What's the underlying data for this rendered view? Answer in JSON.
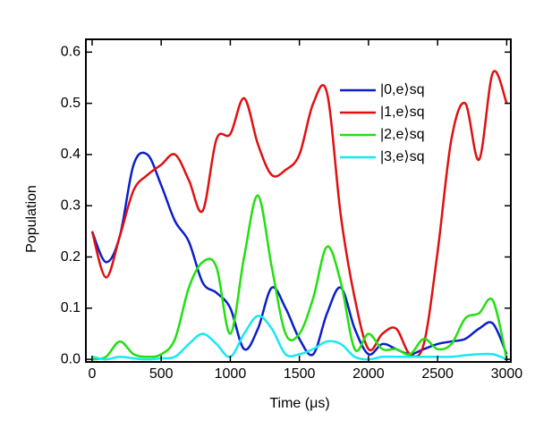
{
  "chart_data": {
    "type": "line",
    "xlabel": "Time (μs)",
    "ylabel": "Population",
    "x": [
      0,
      100,
      200,
      300,
      400,
      500,
      600,
      700,
      800,
      900,
      1000,
      1100,
      1200,
      1300,
      1400,
      1500,
      1600,
      1700,
      1800,
      1900,
      2000,
      2100,
      2200,
      2300,
      2400,
      2500,
      2600,
      2700,
      2800,
      2900,
      3000
    ],
    "series": [
      {
        "name": "|0,e⟩sq",
        "color": "#0a1ecc",
        "values": [
          0.25,
          0.19,
          0.24,
          0.38,
          0.4,
          0.34,
          0.27,
          0.23,
          0.15,
          0.13,
          0.1,
          0.02,
          0.06,
          0.14,
          0.1,
          0.04,
          0.01,
          0.09,
          0.14,
          0.06,
          0.01,
          0.03,
          0.02,
          0.01,
          0.02,
          0.03,
          0.035,
          0.04,
          0.06,
          0.07,
          0.01
        ]
      },
      {
        "name": "|1,e⟩sq",
        "color": "#e01010",
        "values": [
          0.25,
          0.16,
          0.24,
          0.33,
          0.36,
          0.38,
          0.4,
          0.35,
          0.29,
          0.43,
          0.44,
          0.51,
          0.42,
          0.36,
          0.37,
          0.4,
          0.5,
          0.52,
          0.28,
          0.12,
          0.02,
          0.05,
          0.06,
          0.01,
          0.03,
          0.21,
          0.43,
          0.5,
          0.39,
          0.56,
          0.5
        ]
      },
      {
        "name": "|2,e⟩sq",
        "color": "#22e010",
        "values": [
          0.0,
          0.005,
          0.035,
          0.01,
          0.005,
          0.01,
          0.04,
          0.14,
          0.19,
          0.18,
          0.05,
          0.2,
          0.32,
          0.18,
          0.05,
          0.05,
          0.12,
          0.22,
          0.15,
          0.02,
          0.05,
          0.02,
          0.02,
          0.01,
          0.04,
          0.02,
          0.03,
          0.08,
          0.09,
          0.115,
          0.0
        ]
      },
      {
        "name": "|3,e⟩sq",
        "color": "#18e8f0",
        "values": [
          0.005,
          0.0,
          0.005,
          0.002,
          0.0,
          0.002,
          0.005,
          0.03,
          0.05,
          0.03,
          0.005,
          0.05,
          0.085,
          0.06,
          0.01,
          0.01,
          0.02,
          0.035,
          0.03,
          0.005,
          0.0,
          0.005,
          0.005,
          0.005,
          0.005,
          0.005,
          0.005,
          0.008,
          0.01,
          0.01,
          0.0
        ]
      }
    ],
    "xlim": [
      -45,
      3030
    ],
    "ylim": [
      -0.005,
      0.625
    ],
    "xticks": [
      0,
      500,
      1000,
      1500,
      2000,
      2500,
      3000
    ],
    "yticks": [
      {
        "value": 0,
        "label": "0.0"
      },
      0.1,
      0.2,
      0.3,
      0.4,
      0.5,
      0.6
    ],
    "legend": "upper right"
  }
}
